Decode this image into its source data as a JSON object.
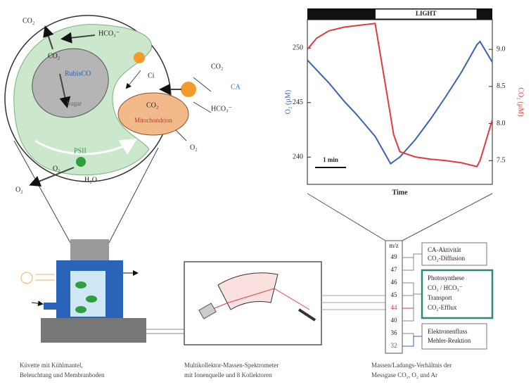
{
  "cell": {
    "co2_out": "CO₂",
    "hco3_in": "HCO₃⁻",
    "co2_in": "CO₂",
    "rubisco": "RubisCO",
    "sugar": "Sugar",
    "ci": "Ci",
    "co2_ext": "CO₂",
    "ca": "CA",
    "hco3_ext": "HCO₃⁻",
    "co2_mito": "CO₂",
    "mito": "Mitochondrion",
    "o2_mito": "O₂",
    "psii": "PSII",
    "o2_psii": "O₂",
    "h2o": "H₂O",
    "o2_out": "O₂"
  },
  "chart_data": {
    "type": "line",
    "light_label": "LIGHT",
    "light_period": [
      2.2,
      5.5
    ],
    "x_label": "Time",
    "y_label": "O₂ (µM)",
    "y2_label": "CO₂ (µM)",
    "scale_bar": "1 min",
    "x": [
      0,
      0.3,
      0.7,
      1.2,
      1.6,
      2.2,
      2.5,
      2.7,
      2.8,
      3.0,
      3.5,
      4,
      4.5,
      5,
      5.5,
      5.6,
      6
    ],
    "xlim": [
      0,
      6
    ],
    "ylim": [
      237.5,
      252.6
    ],
    "yticks": [
      240,
      245,
      250
    ],
    "y2lim": [
      7.18,
      9.4
    ],
    "y2ticks": [
      7.5,
      {
        "value": 8,
        "label": "8.0"
      },
      8.5,
      {
        "value": 9,
        "label": "9.0"
      }
    ],
    "series": [
      {
        "name": "O₂",
        "color": "#3b62b0",
        "values": [
          248.9,
          248.0,
          246.8,
          245.1,
          243.9,
          241.9,
          240.4,
          239.4,
          239.6,
          240.0,
          241.6,
          243.5,
          245.6,
          247.8,
          250.3,
          250.6,
          248.7
        ]
      },
      {
        "name": "CO₂",
        "color": "#e23a3c",
        "axis": "y2",
        "values": [
          9.0,
          9.15,
          9.25,
          9.3,
          9.32,
          9.35,
          8.6,
          8.1,
          7.85,
          7.62,
          7.55,
          7.52,
          7.5,
          7.47,
          7.42,
          7.5,
          8.05
        ]
      }
    ]
  },
  "mz": {
    "header": "m/z",
    "values": [
      49,
      47,
      46,
      45,
      44,
      40,
      36,
      32
    ]
  },
  "groups": [
    [
      "CA-Aktivität",
      "CO₂-Diffusion"
    ],
    [
      "Photosynthese",
      "CO₂ / HCO₃⁻",
      "Transport",
      "CO₂-Efflux"
    ],
    [
      "Elektronenfluss",
      "Mehler-Reaktion"
    ]
  ],
  "captions": [
    [
      "Küvette mit Kühlmantel,",
      "Beleuchtung und Membranboden"
    ],
    [
      "Multikollektor-Massen-Spektrometer",
      "mit Ionenquelle und 8 Kollektoren"
    ],
    [
      "Massen/Ladungs-Verhältnis der",
      "Messgase CO₂, O₂ und Ar"
    ]
  ]
}
